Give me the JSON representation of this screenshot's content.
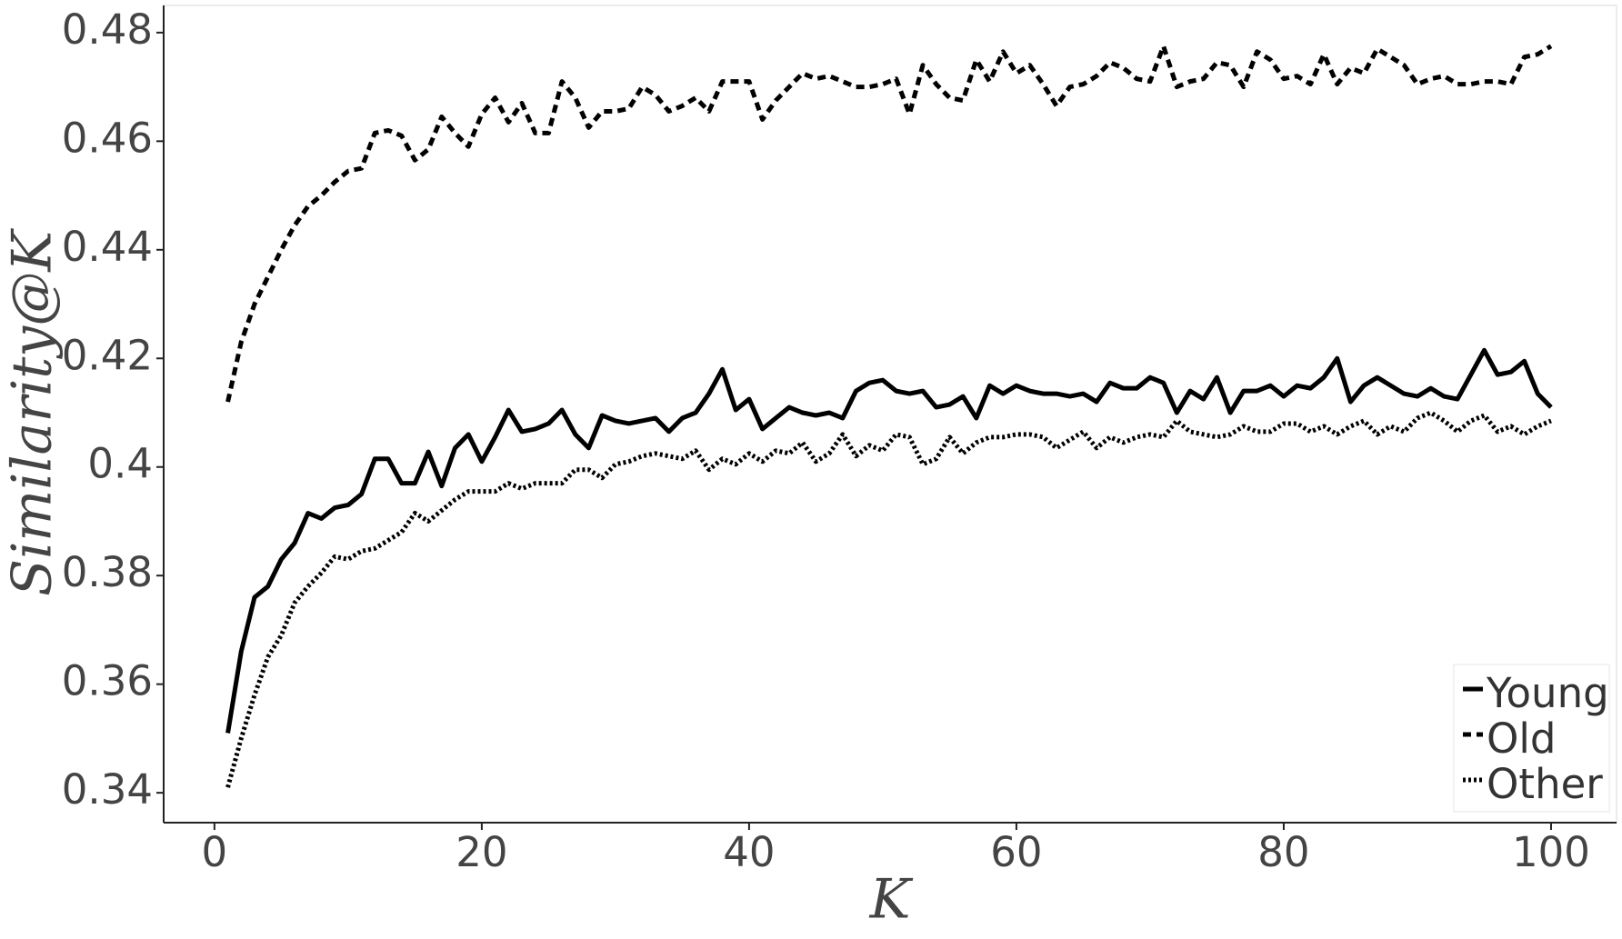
{
  "chart_data": {
    "type": "line",
    "xlabel": "K",
    "ylabel": "Similarity@K",
    "x": [
      1,
      2,
      3,
      4,
      5,
      6,
      7,
      8,
      9,
      10,
      11,
      12,
      13,
      14,
      15,
      16,
      17,
      18,
      19,
      20,
      21,
      22,
      23,
      24,
      25,
      26,
      27,
      28,
      29,
      30,
      31,
      32,
      33,
      34,
      35,
      36,
      37,
      38,
      39,
      40,
      41,
      42,
      43,
      44,
      45,
      46,
      47,
      48,
      49,
      50,
      51,
      52,
      53,
      54,
      55,
      56,
      57,
      58,
      59,
      60,
      61,
      62,
      63,
      64,
      65,
      66,
      67,
      68,
      69,
      70,
      71,
      72,
      73,
      74,
      75,
      76,
      77,
      78,
      79,
      80,
      81,
      82,
      83,
      84,
      85,
      86,
      87,
      88,
      89,
      90,
      91,
      92,
      93,
      94,
      95,
      96,
      97,
      98,
      99,
      100
    ],
    "series": [
      {
        "name": "Young",
        "color": "#000000",
        "linestyle": "solid",
        "values": [
          0.351,
          0.366,
          0.376,
          0.378,
          0.383,
          0.386,
          0.3915,
          0.3905,
          0.3925,
          0.393,
          0.395,
          0.4015,
          0.4015,
          0.397,
          0.397,
          0.4028,
          0.3965,
          0.4035,
          0.406,
          0.401,
          0.4055,
          0.4105,
          0.4065,
          0.407,
          0.408,
          0.4105,
          0.406,
          0.4035,
          0.4095,
          0.4085,
          0.408,
          0.4085,
          0.409,
          0.4065,
          0.409,
          0.41,
          0.4135,
          0.418,
          0.4105,
          0.4125,
          0.407,
          0.409,
          0.411,
          0.41,
          0.4095,
          0.41,
          0.409,
          0.414,
          0.4155,
          0.416,
          0.414,
          0.4135,
          0.414,
          0.411,
          0.4115,
          0.413,
          0.409,
          0.415,
          0.4135,
          0.415,
          0.414,
          0.4135,
          0.4135,
          0.413,
          0.4135,
          0.412,
          0.4155,
          0.4145,
          0.4145,
          0.4165,
          0.4155,
          0.41,
          0.414,
          0.4125,
          0.4165,
          0.41,
          0.414,
          0.414,
          0.415,
          0.413,
          0.415,
          0.4145,
          0.4165,
          0.42,
          0.412,
          0.415,
          0.4165,
          0.415,
          0.4135,
          0.413,
          0.4145,
          0.413,
          0.4125,
          0.417,
          0.4215,
          0.417,
          0.4175,
          0.4195,
          0.4135,
          0.411
        ]
      },
      {
        "name": "Old",
        "color": "#000000",
        "linestyle": "dashed",
        "values": [
          0.412,
          0.423,
          0.43,
          0.435,
          0.44,
          0.4445,
          0.448,
          0.45,
          0.4525,
          0.4545,
          0.455,
          0.4615,
          0.462,
          0.461,
          0.4565,
          0.4585,
          0.4645,
          0.4615,
          0.459,
          0.465,
          0.468,
          0.4635,
          0.467,
          0.4615,
          0.4615,
          0.471,
          0.468,
          0.4625,
          0.4655,
          0.4655,
          0.466,
          0.47,
          0.4685,
          0.4655,
          0.4665,
          0.468,
          0.4655,
          0.471,
          0.471,
          0.471,
          0.464,
          0.4675,
          0.47,
          0.4725,
          0.4715,
          0.472,
          0.471,
          0.47,
          0.47,
          0.4705,
          0.4715,
          0.465,
          0.474,
          0.4705,
          0.468,
          0.4675,
          0.475,
          0.471,
          0.4765,
          0.4725,
          0.474,
          0.4705,
          0.4665,
          0.47,
          0.4705,
          0.472,
          0.4745,
          0.4735,
          0.4715,
          0.471,
          0.4775,
          0.47,
          0.471,
          0.4715,
          0.4745,
          0.474,
          0.47,
          0.4765,
          0.475,
          0.4715,
          0.472,
          0.4705,
          0.476,
          0.4705,
          0.4735,
          0.4725,
          0.477,
          0.4755,
          0.474,
          0.4705,
          0.4715,
          0.472,
          0.4705,
          0.4705,
          0.471,
          0.471,
          0.4705,
          0.4755,
          0.476,
          0.4775
        ]
      },
      {
        "name": "Other",
        "color": "#000000",
        "linestyle": "dotted",
        "values": [
          0.341,
          0.35,
          0.358,
          0.365,
          0.369,
          0.375,
          0.378,
          0.3805,
          0.3835,
          0.383,
          0.3845,
          0.385,
          0.3865,
          0.388,
          0.3915,
          0.39,
          0.392,
          0.394,
          0.3955,
          0.3955,
          0.3955,
          0.397,
          0.396,
          0.397,
          0.397,
          0.397,
          0.3995,
          0.3995,
          0.398,
          0.4005,
          0.401,
          0.402,
          0.4025,
          0.402,
          0.4015,
          0.403,
          0.3995,
          0.4015,
          0.4005,
          0.4025,
          0.401,
          0.403,
          0.4025,
          0.4045,
          0.401,
          0.4025,
          0.406,
          0.402,
          0.404,
          0.403,
          0.406,
          0.4055,
          0.4005,
          0.4015,
          0.4055,
          0.4025,
          0.4045,
          0.4055,
          0.4055,
          0.406,
          0.406,
          0.4055,
          0.4035,
          0.405,
          0.4065,
          0.4035,
          0.4055,
          0.4045,
          0.4055,
          0.406,
          0.4055,
          0.4085,
          0.4065,
          0.406,
          0.4055,
          0.406,
          0.4075,
          0.4065,
          0.4065,
          0.408,
          0.408,
          0.4065,
          0.4075,
          0.406,
          0.4075,
          0.4085,
          0.406,
          0.4075,
          0.4065,
          0.409,
          0.41,
          0.4085,
          0.4065,
          0.4085,
          0.4095,
          0.4065,
          0.4075,
          0.406,
          0.4075,
          0.4085
        ]
      }
    ],
    "xlim": [
      -3.8,
      104.9
    ],
    "ylim": [
      0.3345,
      0.485
    ],
    "xticks": [
      0,
      20,
      40,
      60,
      80,
      100
    ],
    "yticks": [
      0.34,
      0.36,
      0.38,
      0.4,
      0.42,
      0.44,
      0.46,
      0.48
    ],
    "grid": false,
    "legend": "bottom right"
  }
}
